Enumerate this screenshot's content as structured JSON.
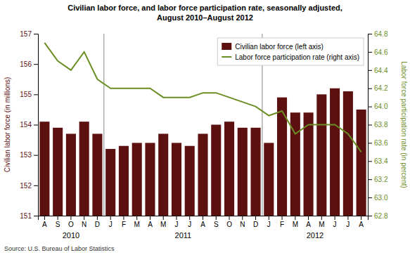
{
  "chart_data": {
    "type": "bar",
    "title": "Civilian labor force, and labor force participation rate, seasonally adjusted,\nAugust 2010–August 2012",
    "ylabel": "Civilian labor force (in millions)",
    "y2label": "Labor force participation rate (in percent)",
    "source": "Source: U.S. Bureau of Labor Statistics",
    "categories": [
      "A",
      "S",
      "O",
      "N",
      "D",
      "J",
      "F",
      "M",
      "A",
      "M",
      "J",
      "J",
      "A",
      "S",
      "O",
      "N",
      "D",
      "J",
      "F",
      "M",
      "A",
      "M",
      "J",
      "J",
      "A"
    ],
    "series": [
      {
        "name": "Civilian labor force (left axis)",
        "type": "bar",
        "color": "#5C1010",
        "values": [
          154.1,
          153.9,
          153.7,
          154.1,
          153.7,
          153.2,
          153.3,
          153.4,
          153.4,
          153.7,
          153.4,
          153.3,
          153.7,
          154.0,
          154.1,
          153.9,
          153.9,
          153.4,
          154.9,
          154.4,
          154.4,
          155.0,
          155.2,
          155.1,
          154.5
        ]
      },
      {
        "name": "Labor force participation rate (right axis)",
        "type": "line",
        "axis": "y2",
        "color": "#6B8E23",
        "values": [
          64.7,
          64.5,
          64.4,
          64.6,
          64.3,
          64.2,
          64.2,
          64.2,
          64.2,
          64.1,
          64.1,
          64.1,
          64.15,
          64.15,
          64.1,
          64.05,
          64.0,
          63.9,
          63.95,
          63.7,
          63.8,
          63.8,
          63.8,
          63.7,
          63.5
        ]
      }
    ],
    "ylim": [
      151,
      157
    ],
    "yticks": [
      151,
      152,
      153,
      154,
      155,
      156,
      157
    ],
    "y2lim": [
      62.8,
      64.8
    ],
    "y2ticks": [
      62.8,
      {
        "value": 63.0,
        "label": "63.0"
      },
      63.2,
      63.4,
      63.6,
      63.8,
      {
        "value": 64.0,
        "label": "64.0"
      },
      64.2,
      64.4,
      64.6,
      64.8
    ],
    "annotations": [
      {
        "text": "2010",
        "x": 2
      },
      {
        "text": "2011",
        "x": 10.5
      },
      {
        "text": "2012",
        "x": 20.5
      }
    ],
    "vlines": [
      4.5,
      16.5
    ],
    "legend": "upper right",
    "grid": false
  }
}
